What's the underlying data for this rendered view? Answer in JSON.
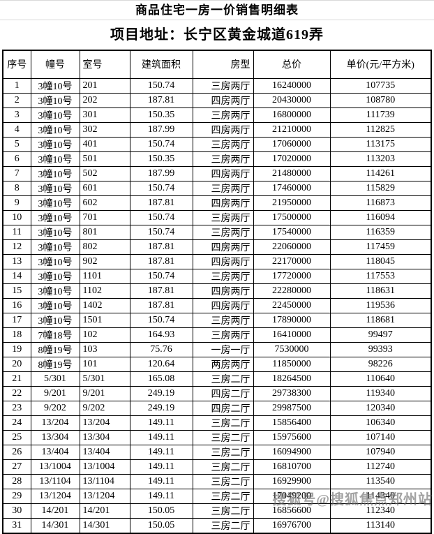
{
  "title": "商品住宅一房一价销售明细表",
  "address": "项目地址：长宁区黄金城道619弄",
  "watermark": "搜狐号@搜狐焦点郑州站",
  "colors": {
    "grid_line": "#000000",
    "separator_line": "#d9d9d9",
    "watermark_gray": "#696969",
    "background": "#ffffff"
  },
  "table": {
    "column_keys": [
      "seq",
      "building",
      "room",
      "area",
      "layout",
      "total_price",
      "unit_price"
    ],
    "headers": [
      "序号",
      "幢号",
      "室号",
      "建筑面积",
      "房型",
      "总价",
      "单价(元/平方米)"
    ],
    "rows": [
      [
        "1",
        "3幢10号",
        "201",
        "150.74",
        "三房两厅",
        "16240000",
        "107735"
      ],
      [
        "2",
        "3幢10号",
        "202",
        "187.81",
        "四房两厅",
        "20430000",
        "108780"
      ],
      [
        "3",
        "3幢10号",
        "301",
        "150.35",
        "三房两厅",
        "16800000",
        "111739"
      ],
      [
        "4",
        "3幢10号",
        "302",
        "187.99",
        "四房两厅",
        "21210000",
        "112825"
      ],
      [
        "5",
        "3幢10号",
        "401",
        "150.74",
        "三房两厅",
        "17060000",
        "113175"
      ],
      [
        "6",
        "3幢10号",
        "501",
        "150.35",
        "三房两厅",
        "17020000",
        "113203"
      ],
      [
        "7",
        "3幢10号",
        "502",
        "187.99",
        "四房两厅",
        "21480000",
        "114261"
      ],
      [
        "8",
        "3幢10号",
        "601",
        "150.74",
        "三房两厅",
        "17460000",
        "115829"
      ],
      [
        "9",
        "3幢10号",
        "602",
        "187.81",
        "四房两厅",
        "21950000",
        "116873"
      ],
      [
        "10",
        "3幢10号",
        "701",
        "150.74",
        "三房两厅",
        "17500000",
        "116094"
      ],
      [
        "11",
        "3幢10号",
        "801",
        "150.74",
        "三房两厅",
        "17540000",
        "116359"
      ],
      [
        "12",
        "3幢10号",
        "802",
        "187.81",
        "四房两厅",
        "22060000",
        "117459"
      ],
      [
        "13",
        "3幢10号",
        "902",
        "187.81",
        "四房两厅",
        "22170000",
        "118045"
      ],
      [
        "14",
        "3幢10号",
        "1101",
        "150.74",
        "三房两厅",
        "17720000",
        "117553"
      ],
      [
        "15",
        "3幢10号",
        "1102",
        "187.81",
        "四房两厅",
        "22280000",
        "118631"
      ],
      [
        "16",
        "3幢10号",
        "1402",
        "187.81",
        "四房两厅",
        "22450000",
        "119536"
      ],
      [
        "17",
        "3幢10号",
        "1501",
        "150.74",
        "三房两厅",
        "17890000",
        "118681"
      ],
      [
        "18",
        "7幢18号",
        "102",
        "164.93",
        "三房两厅",
        "16410000",
        "99497"
      ],
      [
        "19",
        "8幢19号",
        "103",
        "75.76",
        "一房一厅",
        "7530000",
        "99393"
      ],
      [
        "20",
        "8幢19号",
        "101",
        "120.64",
        "两房两厅",
        "11850000",
        "98226"
      ],
      [
        "21",
        "5/301",
        "5/301",
        "165.08",
        "三房二厅",
        "18264500",
        "110640"
      ],
      [
        "22",
        "9/201",
        "9/201",
        "249.19",
        "四房二厅",
        "29738300",
        "119340"
      ],
      [
        "23",
        "9/202",
        "9/202",
        "249.19",
        "四房二厅",
        "29987500",
        "120340"
      ],
      [
        "24",
        "13/204",
        "13/204",
        "149.11",
        "三房二厅",
        "15856400",
        "106340"
      ],
      [
        "25",
        "13/304",
        "13/304",
        "149.11",
        "三房二厅",
        "15975600",
        "107140"
      ],
      [
        "26",
        "13/404",
        "13/404",
        "149.11",
        "三房二厅",
        "16094900",
        "107940"
      ],
      [
        "27",
        "13/1004",
        "13/1004",
        "149.11",
        "三房二厅",
        "16810700",
        "112740"
      ],
      [
        "28",
        "13/1104",
        "13/1104",
        "149.11",
        "三房二厅",
        "16929900",
        "113540"
      ],
      [
        "29",
        "13/1204",
        "13/1204",
        "149.11",
        "三房二厅",
        "17049200",
        "114340"
      ],
      [
        "30",
        "14/201",
        "14/201",
        "150.05",
        "三房二厅",
        "16856600",
        "112340"
      ],
      [
        "31",
        "14/301",
        "14/301",
        "150.05",
        "三房二厅",
        "16976700",
        "113140"
      ]
    ]
  }
}
